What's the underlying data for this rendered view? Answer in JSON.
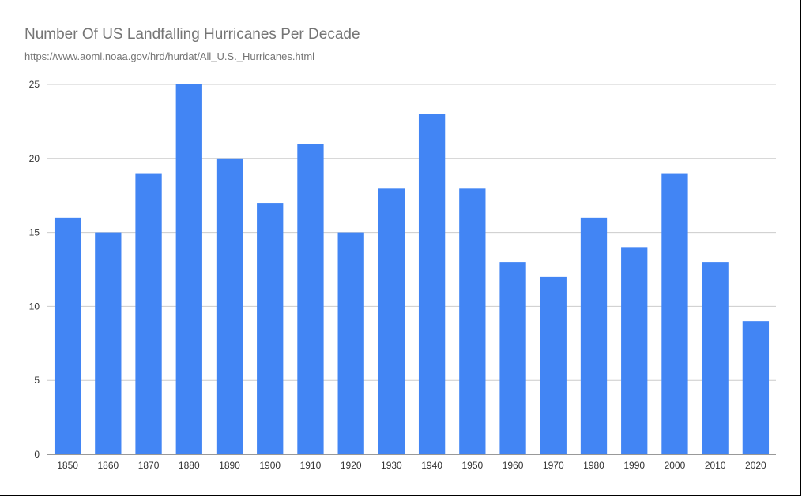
{
  "chart_data": {
    "type": "bar",
    "title": "Number Of US Landfalling Hurricanes Per Decade",
    "subtitle": "https://www.aoml.noaa.gov/hrd/hurdat/All_U.S._Hurricanes.html",
    "xlabel": "",
    "ylabel": "",
    "categories": [
      "1850",
      "1860",
      "1870",
      "1880",
      "1890",
      "1900",
      "1910",
      "1920",
      "1930",
      "1940",
      "1950",
      "1960",
      "1970",
      "1980",
      "1990",
      "2000",
      "2010",
      "2020"
    ],
    "values": [
      16,
      15,
      19,
      25,
      20,
      17,
      21,
      15,
      18,
      23,
      18,
      13,
      12,
      16,
      14,
      19,
      13,
      9
    ],
    "ylim": [
      0,
      25
    ],
    "yticks": [
      0,
      5,
      10,
      15,
      20,
      25
    ],
    "grid": true,
    "legend": "none",
    "colors": {
      "bar": "#4285f4",
      "gridline": "#cccccc",
      "axis": "#333333",
      "title": "#757575"
    }
  }
}
